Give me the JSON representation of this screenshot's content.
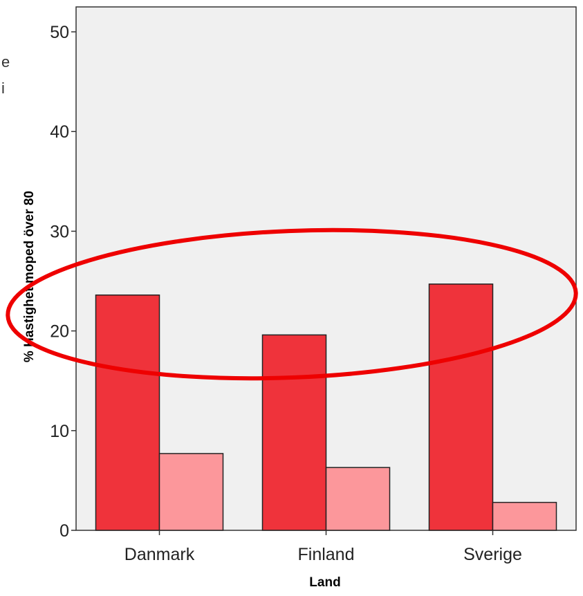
{
  "chart_data": {
    "type": "bar",
    "categories": [
      "Danmark",
      "Finland",
      "Sverige"
    ],
    "series": [
      {
        "values": [
          23.6,
          19.6,
          24.7
        ],
        "color": "#ef333b"
      },
      {
        "values": [
          7.7,
          6.3,
          2.8
        ],
        "color": "#fc979b"
      }
    ],
    "xlabel": "Land",
    "ylabel": "% Hastighet moped över 80",
    "yticks": [
      "0",
      "10",
      "20",
      "30",
      "40",
      "50"
    ],
    "ylim": [
      0,
      52.5
    ],
    "grid": false,
    "legend": "clipped-left",
    "legend_fragments": [
      "e",
      "i"
    ],
    "plot_background": "#f0f0f0",
    "annotation": {
      "type": "ellipse",
      "color": "#ee0000",
      "note": "hand-drawn red ellipse around the tall bars near 20–30"
    }
  }
}
